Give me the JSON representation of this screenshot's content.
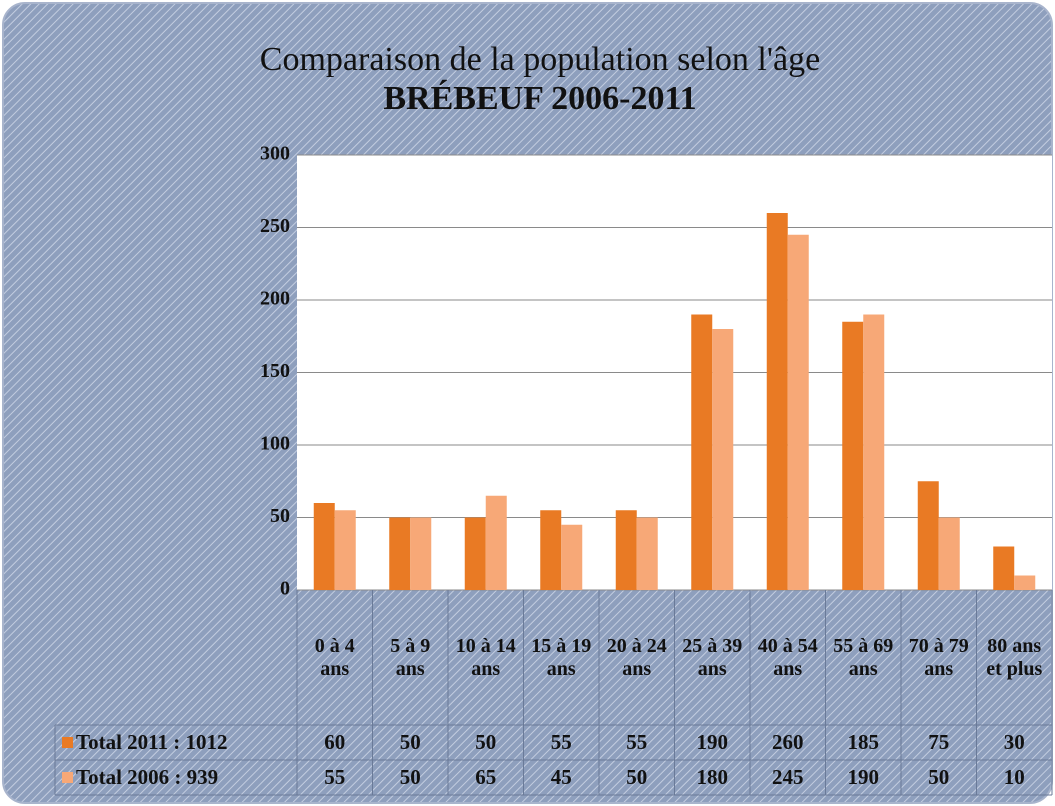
{
  "chart_data": {
    "type": "bar",
    "title": "Comparaison de la population selon l'âge",
    "subtitle": "BRÉBEUF 2006-2011",
    "categories": [
      "0 à 4 ans",
      "5 à 9 ans",
      "10 à 14 ans",
      "15 à 19 ans",
      "20 à 24 ans",
      "25 à 39 ans",
      "40 à 54 ans",
      "55 à 69 ans",
      "70 à 79 ans",
      "80 ans et plus"
    ],
    "series": [
      {
        "name": "Total 2011 : 1012",
        "color": "#e97a24",
        "values": [
          60,
          50,
          50,
          55,
          55,
          190,
          260,
          185,
          75,
          30
        ]
      },
      {
        "name": "Total 2006 : 939",
        "color": "#f7a877",
        "values": [
          55,
          50,
          65,
          45,
          50,
          180,
          245,
          190,
          50,
          10
        ]
      }
    ],
    "ylim": [
      0,
      300
    ],
    "yticks": [
      0,
      50,
      100,
      150,
      200,
      250,
      300
    ],
    "grid": true
  }
}
